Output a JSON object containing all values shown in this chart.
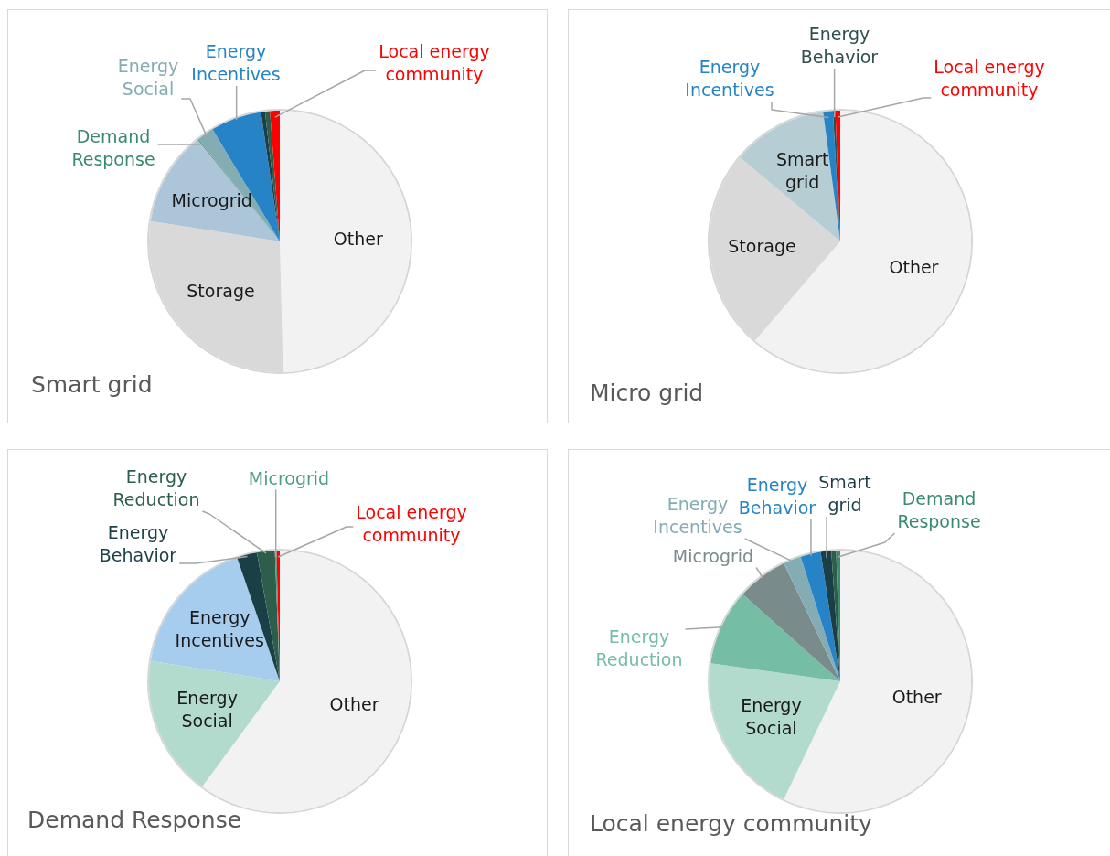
{
  "chart_data": [
    {
      "type": "pie",
      "title": "Smart grid",
      "categories": [
        "Other",
        "Storage",
        "Microgrid",
        "Demand Response",
        "Energy Social",
        "Energy Incentives",
        null,
        null,
        "Local energy community"
      ],
      "values": [
        49.6,
        27.9,
        11.7,
        0.1,
        2.1,
        6.3,
        0.5,
        0.6,
        1.2
      ],
      "colors": [
        "#f2f2f2",
        "#d9d9d9",
        "#adc5d8",
        "#3a8a6e",
        "#84acb3",
        "#2684c6",
        "#1b3f47",
        "#2d5e4c",
        "#ff0000"
      ],
      "legend": false
    },
    {
      "type": "pie",
      "title": "Micro grid",
      "categories": [
        "Other",
        "Storage",
        "Smart grid",
        "Energy Incentives",
        "Energy Behavior",
        "Local energy community"
      ],
      "values": [
        61.3,
        24.8,
        11.8,
        1.2,
        0.3,
        0.6
      ],
      "colors": [
        "#f2f2f2",
        "#d9d9d9",
        "#b6cdd4",
        "#2684c6",
        "#2f4f4f",
        "#ff0000"
      ],
      "legend": false
    },
    {
      "type": "pie",
      "title": "Demand Response",
      "categories": [
        "Other",
        "Energy Social",
        "Energy Incentives",
        "Energy Behavior",
        "Energy Reduction",
        "Microgrid",
        "Local energy community"
      ],
      "values": [
        60.1,
        17.4,
        17.2,
        2.5,
        2.2,
        0.2,
        0.4
      ],
      "colors": [
        "#f2f2f2",
        "#b3dbcd",
        "#a6cded",
        "#1b3f47",
        "#2d5e4c",
        "#4e9e80",
        "#ff0000"
      ],
      "legend": false
    },
    {
      "type": "pie",
      "title": "Local energy community",
      "categories": [
        "Other",
        "Energy Social",
        "Energy Reduction",
        "Microgrid",
        "Energy Incentives",
        "Energy Behavior",
        "Smart grid",
        null,
        "Demand Response"
      ],
      "values": [
        57.1,
        20.1,
        9.4,
        6.3,
        2.2,
        2.5,
        1.3,
        0.6,
        0.5
      ],
      "colors": [
        "#f2f2f2",
        "#b3dbcd",
        "#76bda6",
        "#7a8b8c",
        "#84acb4",
        "#2684c6",
        "#1b3f47",
        "#2d5e4c",
        "#3a8a6e"
      ],
      "legend": false
    }
  ]
}
